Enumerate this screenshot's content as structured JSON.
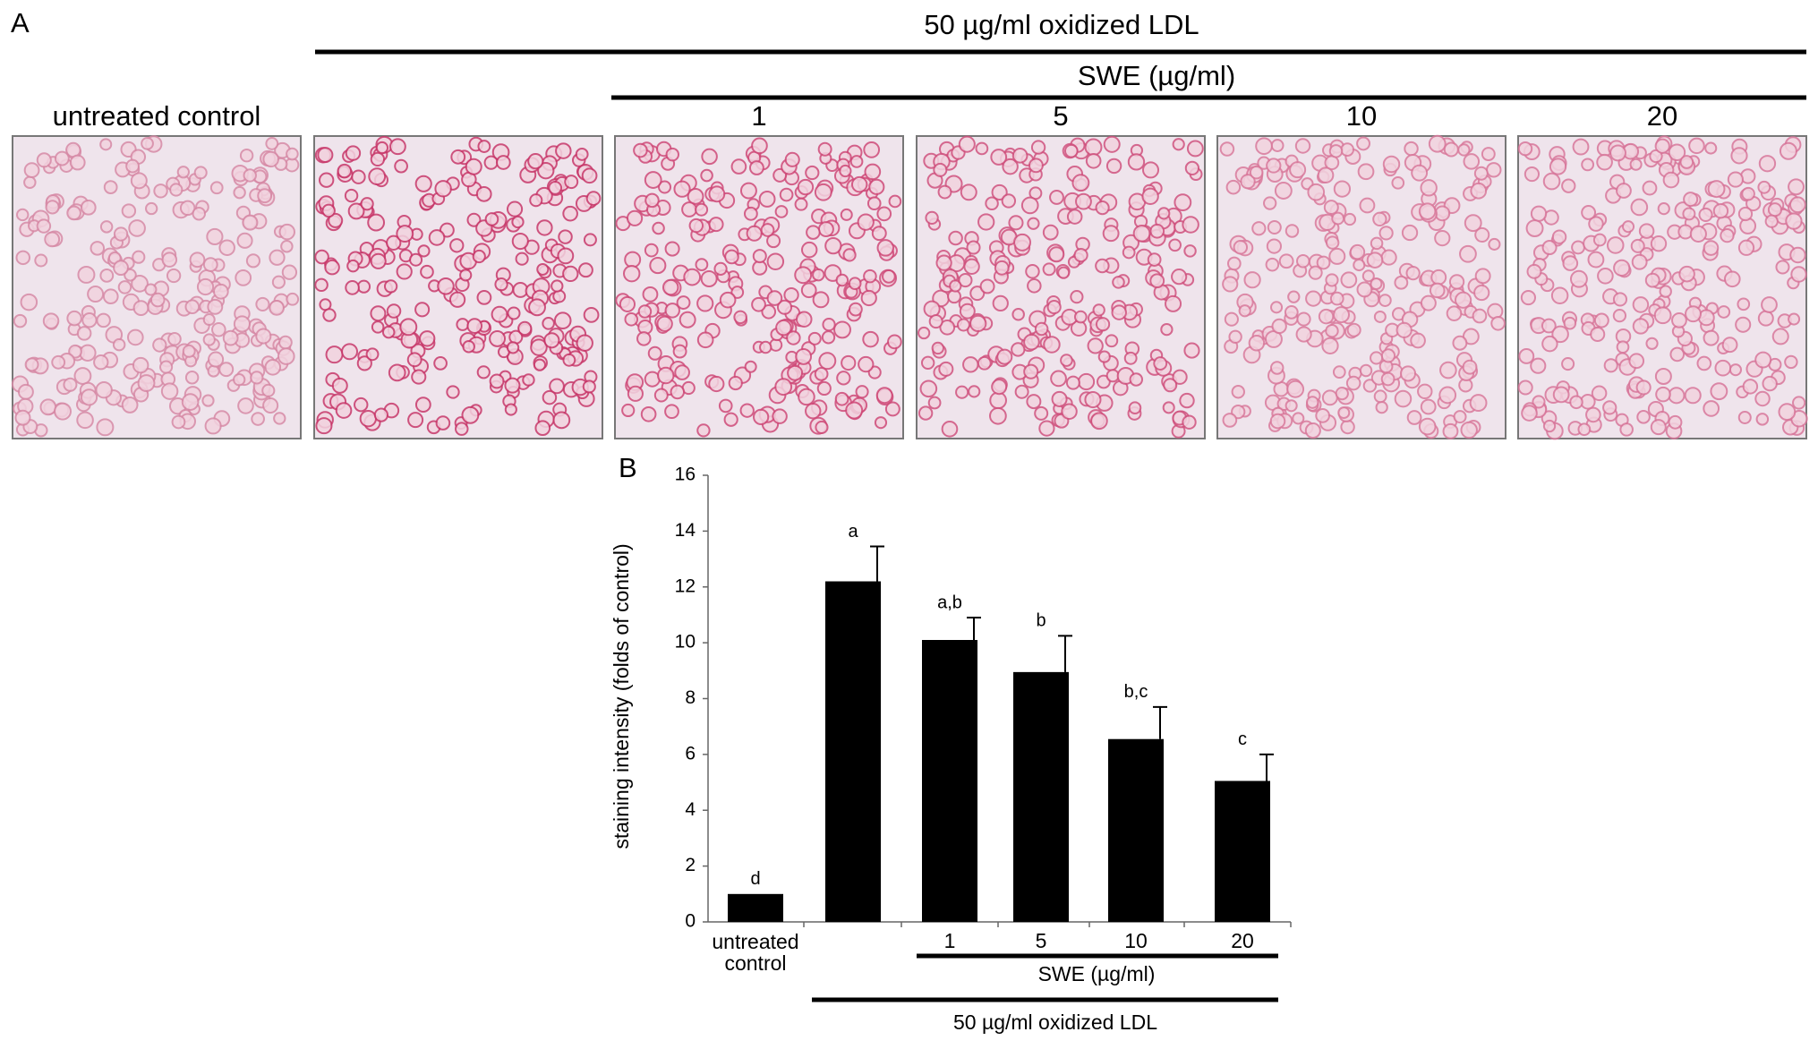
{
  "panel_a": {
    "label": "A",
    "treatment": "50 µg/ml oxidized LDL",
    "dose_header": "SWE (µg/ml)",
    "columns": [
      "untreated control",
      null,
      "1",
      "5",
      "10",
      "20"
    ]
  },
  "chart_data": {
    "type": "bar",
    "panel_label": "B",
    "y_label": "staining intensity (folds of control)",
    "categories": [
      "untreated control",
      null,
      "1",
      "5",
      "10",
      "20"
    ],
    "values": [
      1.0,
      12.2,
      10.1,
      8.95,
      6.55,
      5.05
    ],
    "errors": [
      null,
      1.25,
      0.8,
      1.3,
      1.15,
      0.95
    ],
    "annotations": [
      "d",
      "a",
      "a,b",
      "b",
      "b,c",
      "c"
    ],
    "color": "#000000",
    "ylim": [
      0,
      16
    ],
    "yticks": [
      0,
      2,
      4,
      6,
      8,
      10,
      12,
      14,
      16
    ],
    "dose_group_label": "SWE (µg/ml)",
    "treatment_group_label": "50 µg/ml oxidized LDL"
  }
}
